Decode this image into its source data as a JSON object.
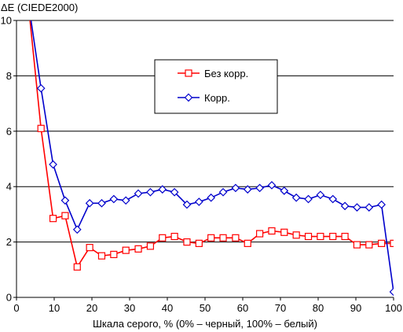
{
  "chart_data": {
    "type": "line",
    "ylabel": "ΔE (CIEDE2000)",
    "xlabel": "Шкала серого, % (0% – черный, 100% – белый)",
    "xlim": [
      0,
      100
    ],
    "ylim": [
      0,
      10
    ],
    "xticks": [
      0,
      10,
      20,
      30,
      40,
      50,
      60,
      70,
      80,
      90,
      100
    ],
    "yticks": [
      0,
      2,
      4,
      6,
      8,
      10
    ],
    "x_tick_labels": [
      "0",
      "10",
      "20",
      "30",
      "40",
      "50",
      "60",
      "70",
      "80",
      "90",
      "100"
    ],
    "y_tick_labels": [
      "0",
      "2",
      "4",
      "6",
      "8",
      "10"
    ],
    "grid": "horizontal",
    "legend": "inside-upper-center",
    "series": [
      {
        "name": "Без корр.",
        "color": "#ff0000",
        "marker": "square",
        "x": [
          3.2,
          6.5,
          9.7,
          12.9,
          16.1,
          19.4,
          22.6,
          25.8,
          29.0,
          32.3,
          35.5,
          38.7,
          41.9,
          45.2,
          48.4,
          51.6,
          54.8,
          58.1,
          61.3,
          64.5,
          67.7,
          71.0,
          74.2,
          77.4,
          80.6,
          83.9,
          87.1,
          90.3,
          93.5,
          96.8,
          100.0
        ],
        "values": [
          10.5,
          6.1,
          2.85,
          2.95,
          1.1,
          1.8,
          1.5,
          1.55,
          1.7,
          1.75,
          1.85,
          2.15,
          2.2,
          2.0,
          1.95,
          2.15,
          2.15,
          2.15,
          1.95,
          2.3,
          2.4,
          2.35,
          2.25,
          2.2,
          2.2,
          2.2,
          2.2,
          1.9,
          1.9,
          1.95,
          1.95
        ]
      },
      {
        "name": "Корр.",
        "color": "#0000cc",
        "marker": "diamond",
        "x": [
          3.2,
          6.5,
          9.7,
          12.9,
          16.1,
          19.4,
          22.6,
          25.8,
          29.0,
          32.3,
          35.5,
          38.7,
          41.9,
          45.2,
          48.4,
          51.6,
          54.8,
          58.1,
          61.3,
          64.5,
          67.7,
          71.0,
          74.2,
          77.4,
          80.6,
          83.9,
          87.1,
          90.3,
          93.5,
          96.8,
          100.0
        ],
        "values": [
          10.6,
          7.55,
          4.8,
          3.5,
          2.45,
          3.4,
          3.4,
          3.55,
          3.5,
          3.75,
          3.8,
          3.9,
          3.8,
          3.35,
          3.45,
          3.6,
          3.8,
          3.95,
          3.9,
          3.95,
          4.05,
          3.85,
          3.6,
          3.55,
          3.7,
          3.55,
          3.3,
          3.25,
          3.25,
          3.35,
          0.2
        ]
      }
    ]
  }
}
